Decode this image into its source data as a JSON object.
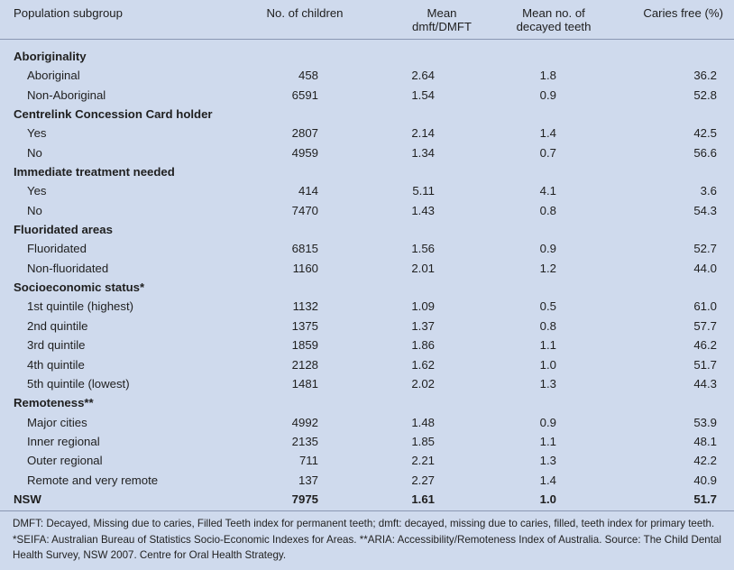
{
  "columns": [
    "Population subgroup",
    "No. of children",
    "Mean\ndmft/DMFT",
    "Mean no. of\ndecayed teeth",
    "Caries free (%)"
  ],
  "header": {
    "col1": "Population subgroup",
    "col2": "No. of children",
    "col3_line1": "Mean",
    "col3_line2": "dmft/DMFT",
    "col4_line1": "Mean no. of",
    "col4_line2": "decayed teeth",
    "col5": "Caries free (%)"
  },
  "rows": [
    {
      "kind": "group",
      "label": "Aboriginality"
    },
    {
      "kind": "item",
      "label": "Aboriginal",
      "children": "458",
      "mean_dmft": "2.64",
      "mean_decayed": "1.8",
      "caries_free": "36.2"
    },
    {
      "kind": "item",
      "label": "Non-Aboriginal",
      "children": "6591",
      "mean_dmft": "1.54",
      "mean_decayed": "0.9",
      "caries_free": "52.8"
    },
    {
      "kind": "group",
      "label": "Centrelink Concession Card holder"
    },
    {
      "kind": "item",
      "label": "Yes",
      "children": "2807",
      "mean_dmft": "2.14",
      "mean_decayed": "1.4",
      "caries_free": "42.5"
    },
    {
      "kind": "item",
      "label": "No",
      "children": "4959",
      "mean_dmft": "1.34",
      "mean_decayed": "0.7",
      "caries_free": "56.6"
    },
    {
      "kind": "group",
      "label": "Immediate treatment needed"
    },
    {
      "kind": "item",
      "label": "Yes",
      "children": "414",
      "mean_dmft": "5.11",
      "mean_decayed": "4.1",
      "caries_free": "3.6"
    },
    {
      "kind": "item",
      "label": "No",
      "children": "7470",
      "mean_dmft": "1.43",
      "mean_decayed": "0.8",
      "caries_free": "54.3"
    },
    {
      "kind": "group",
      "label": "Fluoridated areas"
    },
    {
      "kind": "item",
      "label": "Fluoridated",
      "children": "6815",
      "mean_dmft": "1.56",
      "mean_decayed": "0.9",
      "caries_free": "52.7"
    },
    {
      "kind": "item",
      "label": "Non-fluoridated",
      "children": "1160",
      "mean_dmft": "2.01",
      "mean_decayed": "1.2",
      "caries_free": "44.0"
    },
    {
      "kind": "group",
      "label": "Socioeconomic status*"
    },
    {
      "kind": "item",
      "label": "1st quintile (highest)",
      "children": "1132",
      "mean_dmft": "1.09",
      "mean_decayed": "0.5",
      "caries_free": "61.0"
    },
    {
      "kind": "item",
      "label": "2nd quintile",
      "children": "1375",
      "mean_dmft": "1.37",
      "mean_decayed": "0.8",
      "caries_free": "57.7"
    },
    {
      "kind": "item",
      "label": "3rd quintile",
      "children": "1859",
      "mean_dmft": "1.86",
      "mean_decayed": "1.1",
      "caries_free": "46.2"
    },
    {
      "kind": "item",
      "label": "4th quintile",
      "children": "2128",
      "mean_dmft": "1.62",
      "mean_decayed": "1.0",
      "caries_free": "51.7"
    },
    {
      "kind": "item",
      "label": "5th quintile (lowest)",
      "children": "1481",
      "mean_dmft": "2.02",
      "mean_decayed": "1.3",
      "caries_free": "44.3"
    },
    {
      "kind": "group",
      "label": "Remoteness**"
    },
    {
      "kind": "item",
      "label": "Major cities",
      "children": "4992",
      "mean_dmft": "1.48",
      "mean_decayed": "0.9",
      "caries_free": "53.9"
    },
    {
      "kind": "item",
      "label": "Inner regional",
      "children": "2135",
      "mean_dmft": "1.85",
      "mean_decayed": "1.1",
      "caries_free": "48.1"
    },
    {
      "kind": "item",
      "label": "Outer regional",
      "children": "711",
      "mean_dmft": "2.21",
      "mean_decayed": "1.3",
      "caries_free": "42.2"
    },
    {
      "kind": "item",
      "label": "Remote and very remote",
      "children": "137",
      "mean_dmft": "2.27",
      "mean_decayed": "1.4",
      "caries_free": "40.9"
    },
    {
      "kind": "total",
      "label": "NSW",
      "children": "7975",
      "mean_dmft": "1.61",
      "mean_decayed": "1.0",
      "caries_free": "51.7"
    }
  ],
  "footnote": "DMFT: Decayed, Missing due to caries, Filled Teeth index for permanent teeth; dmft: decayed, missing due to caries, filled, teeth index for primary teeth. *SEIFA: Australian Bureau of Statistics Socio-Economic Indexes for Areas. **ARIA: Accessibility/Remoteness Index of Australia. Source: The Child Dental Health Survey, NSW 2007. Centre for Oral Health Strategy.",
  "colors": {
    "background": "#cfdaed",
    "rule": "#8a97b3",
    "text": "#1f1f1f"
  }
}
